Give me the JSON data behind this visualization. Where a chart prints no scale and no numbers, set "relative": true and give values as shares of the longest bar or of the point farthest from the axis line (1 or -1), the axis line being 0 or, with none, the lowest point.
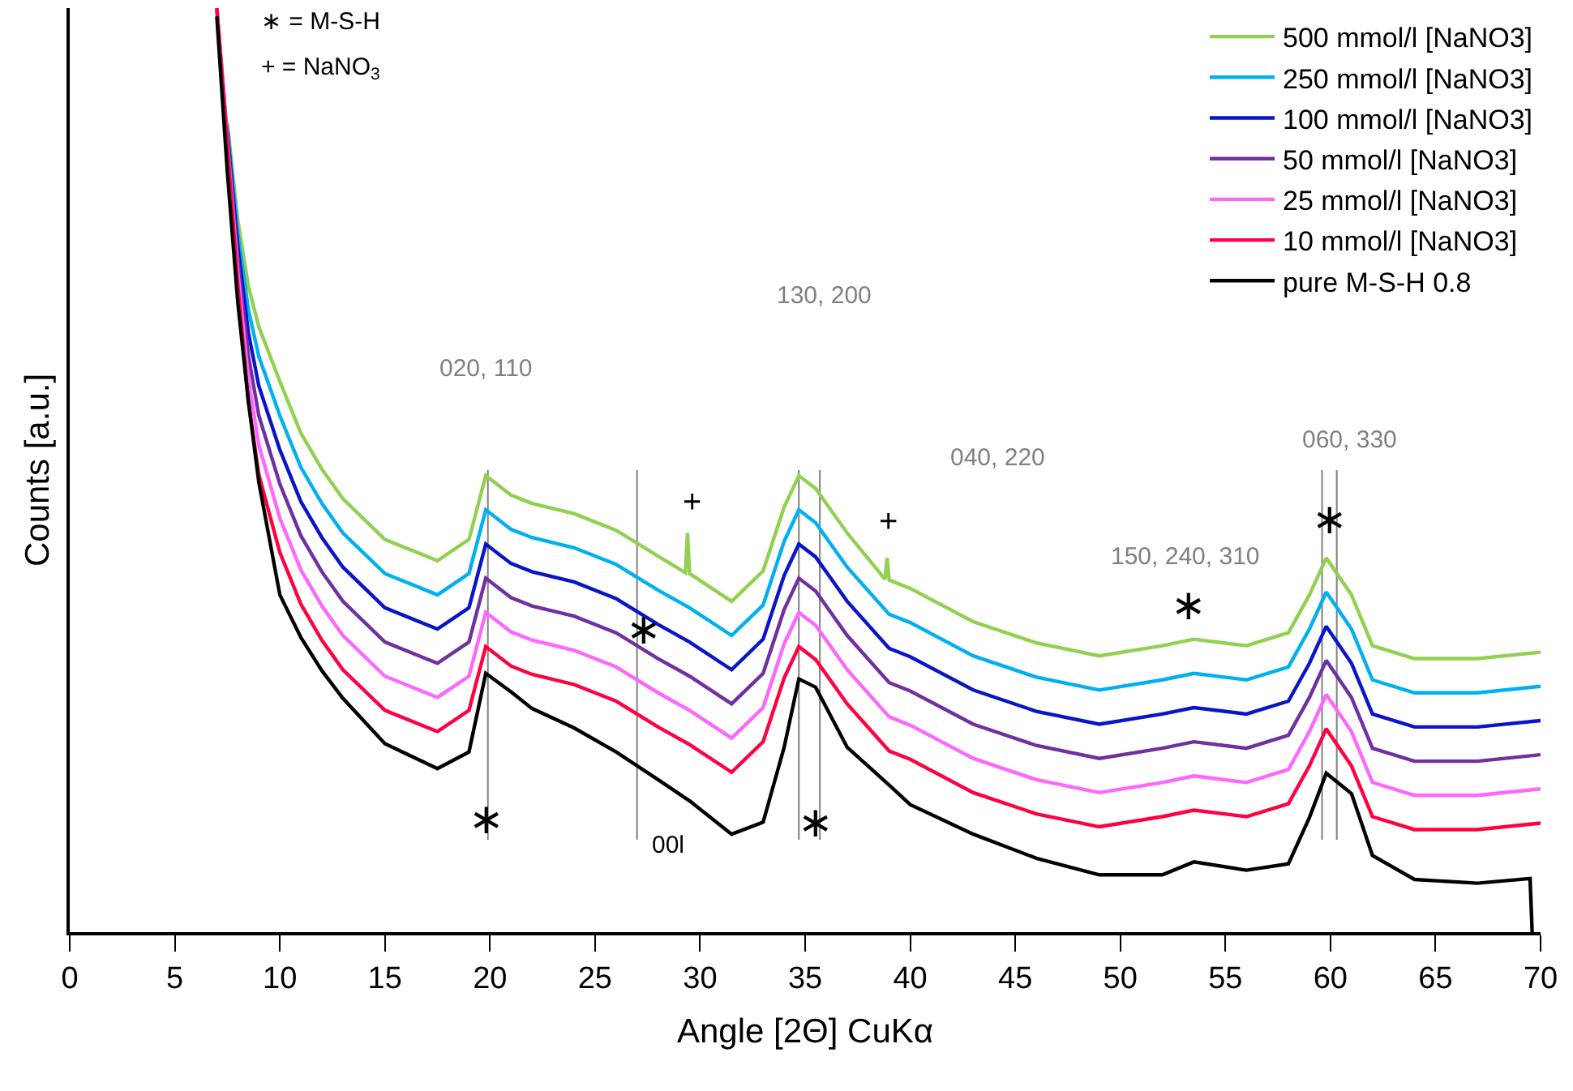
{
  "chart_data": {
    "type": "line",
    "relative": true,
    "xlabel": "Angle [2Θ] CuKα",
    "ylabel": "Counts [a.u.]",
    "xlim": [
      0,
      70
    ],
    "xticks": [
      0,
      5,
      10,
      15,
      20,
      25,
      30,
      35,
      40,
      45,
      50,
      55,
      60,
      65,
      70
    ],
    "grid": false,
    "legend": "top right",
    "marker": "none",
    "line_style": "solid",
    "x": [
      7,
      7.5,
      8,
      8.5,
      9,
      10,
      11,
      12,
      13,
      15,
      17.5,
      19,
      19.8,
      21,
      22,
      24,
      26,
      28,
      29.5,
      31.5,
      33,
      34,
      34.7,
      35.5,
      37,
      39,
      40,
      43,
      46,
      49,
      52,
      53.5,
      56,
      58,
      59,
      59.8,
      61,
      62,
      64,
      67,
      70
    ],
    "series": [
      {
        "name": "500 mmol/l [NaNO3]",
        "color": "#92d050",
        "x": [
          7.5,
          8,
          8.5,
          9,
          10,
          11,
          12,
          13,
          15,
          17.5,
          19,
          19.8,
          21,
          22,
          24,
          26,
          28,
          29.3,
          29.4,
          29.5,
          31.5,
          33,
          34,
          34.7,
          35.5,
          37,
          38.8,
          38.9,
          39,
          40,
          43,
          46,
          49,
          52,
          53.5,
          56,
          58,
          59,
          59.8,
          61,
          62,
          64,
          67,
          70
        ],
        "values": [
          0.876,
          0.77,
          0.699,
          0.655,
          0.596,
          0.54,
          0.501,
          0.469,
          0.425,
          0.402,
          0.425,
          0.494,
          0.473,
          0.464,
          0.453,
          0.435,
          0.407,
          0.389,
          0.432,
          0.388,
          0.358,
          0.391,
          0.46,
          0.494,
          0.48,
          0.432,
          0.382,
          0.405,
          0.381,
          0.372,
          0.336,
          0.313,
          0.299,
          0.31,
          0.317,
          0.31,
          0.324,
          0.365,
          0.405,
          0.365,
          0.31,
          0.296,
          0.296,
          0.303
        ]
      },
      {
        "name": "250 mmol/l [NaNO3]",
        "color": "#00b0f0",
        "values": [
          null,
          0.871,
          0.756,
          0.674,
          0.623,
          0.559,
          0.503,
          0.464,
          0.432,
          0.388,
          0.365,
          0.388,
          0.457,
          0.436,
          0.427,
          0.416,
          0.398,
          0.37,
          0.351,
          0.321,
          0.354,
          0.423,
          0.457,
          0.443,
          0.395,
          0.344,
          0.335,
          0.299,
          0.276,
          0.262,
          0.273,
          0.28,
          0.273,
          0.287,
          0.328,
          0.368,
          0.328,
          0.273,
          0.259,
          0.259,
          0.266
        ]
      },
      {
        "name": "100 mmol/l [NaNO3]",
        "color": "#0a14c8",
        "values": [
          null,
          0.866,
          0.742,
          0.649,
          0.591,
          0.522,
          0.466,
          0.427,
          0.395,
          0.351,
          0.328,
          0.351,
          0.42,
          0.399,
          0.39,
          0.379,
          0.361,
          0.333,
          0.314,
          0.284,
          0.317,
          0.386,
          0.42,
          0.406,
          0.358,
          0.307,
          0.298,
          0.262,
          0.239,
          0.225,
          0.236,
          0.243,
          0.236,
          0.25,
          0.291,
          0.331,
          0.291,
          0.236,
          0.222,
          0.222,
          0.229
        ]
      },
      {
        "name": "50 mmol/l [NaNO3]",
        "color": "#7030a0",
        "values": [
          1.0,
          0.861,
          0.728,
          0.624,
          0.559,
          0.485,
          0.429,
          0.39,
          0.358,
          0.314,
          0.291,
          0.314,
          0.383,
          0.362,
          0.353,
          0.342,
          0.324,
          0.296,
          0.277,
          0.247,
          0.28,
          0.349,
          0.383,
          0.369,
          0.321,
          0.27,
          0.261,
          0.225,
          0.202,
          0.188,
          0.199,
          0.206,
          0.199,
          0.213,
          0.254,
          0.294,
          0.254,
          0.199,
          0.185,
          0.185,
          0.192
        ]
      },
      {
        "name": "25 mmol/l [NaNO3]",
        "color": "#ff66ff",
        "values": [
          1.0,
          0.856,
          0.714,
          0.599,
          0.527,
          0.448,
          0.392,
          0.353,
          0.321,
          0.277,
          0.254,
          0.277,
          0.346,
          0.325,
          0.316,
          0.305,
          0.287,
          0.259,
          0.24,
          0.21,
          0.243,
          0.312,
          0.346,
          0.332,
          0.284,
          0.233,
          0.224,
          0.188,
          0.165,
          0.151,
          0.162,
          0.169,
          0.162,
          0.176,
          0.217,
          0.257,
          0.217,
          0.162,
          0.148,
          0.148,
          0.155
        ]
      },
      {
        "name": "10 mmol/l [NaNO3]",
        "color": "#ff0040",
        "values": [
          1.0,
          0.851,
          0.7,
          0.574,
          0.495,
          0.411,
          0.355,
          0.316,
          0.284,
          0.24,
          0.217,
          0.24,
          0.309,
          0.288,
          0.279,
          0.268,
          0.25,
          0.222,
          0.203,
          0.173,
          0.206,
          0.275,
          0.309,
          0.295,
          0.247,
          0.196,
          0.187,
          0.151,
          0.128,
          0.114,
          0.125,
          0.132,
          0.125,
          0.139,
          0.18,
          0.22,
          0.18,
          0.125,
          0.111,
          0.111,
          0.118
        ]
      },
      {
        "name": "pure M-S-H 0.8",
        "color": "#000000",
        "x": [
          7,
          7.5,
          8,
          8.5,
          9,
          10,
          11,
          12,
          13,
          15,
          17.5,
          19,
          19.8,
          21,
          22,
          24,
          26,
          28,
          29.5,
          31.5,
          33,
          34,
          34.7,
          35.5,
          37,
          39,
          40,
          43,
          46,
          49,
          52,
          53.5,
          56,
          58,
          59,
          59.8,
          61,
          62,
          64,
          67,
          69.5,
          69.6
        ],
        "values": [
          0.991,
          0.823,
          0.681,
          0.575,
          0.487,
          0.365,
          0.319,
          0.283,
          0.253,
          0.204,
          0.177,
          0.195,
          0.28,
          0.26,
          0.242,
          0.221,
          0.195,
          0.165,
          0.142,
          0.106,
          0.119,
          0.2,
          0.274,
          0.265,
          0.2,
          0.159,
          0.138,
          0.106,
          0.08,
          0.062,
          0.062,
          0.076,
          0.067,
          0.074,
          0.124,
          0.172,
          0.15,
          0.083,
          0.057,
          0.053,
          0.058,
          0.0
        ]
      }
    ],
    "ref_lines": [
      {
        "axis": "x",
        "value": 19.9,
        "color": "#808080"
      },
      {
        "axis": "x",
        "value": 27.0,
        "color": "#808080"
      },
      {
        "axis": "x",
        "value": 34.7,
        "color": "#808080"
      },
      {
        "axis": "x",
        "value": 35.7,
        "color": "#808080"
      },
      {
        "axis": "x",
        "value": 59.6,
        "color": "#808080"
      },
      {
        "axis": "x",
        "value": 60.3,
        "color": "#808080"
      }
    ],
    "annotations": [
      "∗ = M-S-H",
      "+ = NaNO$_{3}$",
      "020, 110",
      "130, 200",
      "040, 220",
      "150, 240, 310",
      "060, 330",
      "00l",
      "∗",
      "∗",
      "∗",
      "∗",
      "∗",
      "+",
      "+"
    ]
  }
}
